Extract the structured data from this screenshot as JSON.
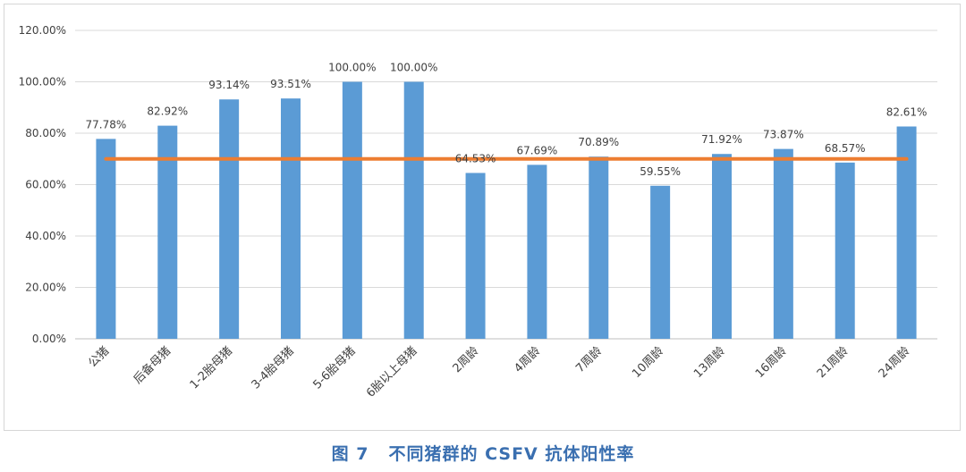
{
  "caption": {
    "figure_label": "图 7",
    "title": "不同猪群的 CSFV 抗体阳性率"
  },
  "chart_data": {
    "type": "bar",
    "categories": [
      "公猪",
      "后备母猪",
      "1-2胎母猪",
      "3-4胎母猪",
      "5-6胎母猪",
      "6胎以上母猪",
      "2周龄",
      "4周龄",
      "7周龄",
      "10周龄",
      "13周龄",
      "16周龄",
      "21周龄",
      "24周龄"
    ],
    "values": [
      77.78,
      82.92,
      93.14,
      93.51,
      100.0,
      100.0,
      64.53,
      67.69,
      70.89,
      59.55,
      71.92,
      73.87,
      68.57,
      82.61
    ],
    "value_labels": [
      "77.78%",
      "82.92%",
      "93.14%",
      "93.51%",
      "100.00%",
      "100.00%",
      "64.53%",
      "67.69%",
      "70.89%",
      "59.55%",
      "71.92%",
      "73.87%",
      "68.57%",
      "82.61%"
    ],
    "reference_line": 70,
    "ylim": [
      0,
      120
    ],
    "yticks": [
      0,
      20,
      40,
      60,
      80,
      100,
      120
    ],
    "ytick_labels": [
      "0.00%",
      "20.00%",
      "40.00%",
      "60.00%",
      "80.00%",
      "100.00%",
      "120.00%"
    ],
    "grid": true,
    "colors": {
      "bar": "#5b9bd5",
      "reference_line": "#ed7d31",
      "grid": "#d9d9d9",
      "text": "#404040"
    }
  }
}
